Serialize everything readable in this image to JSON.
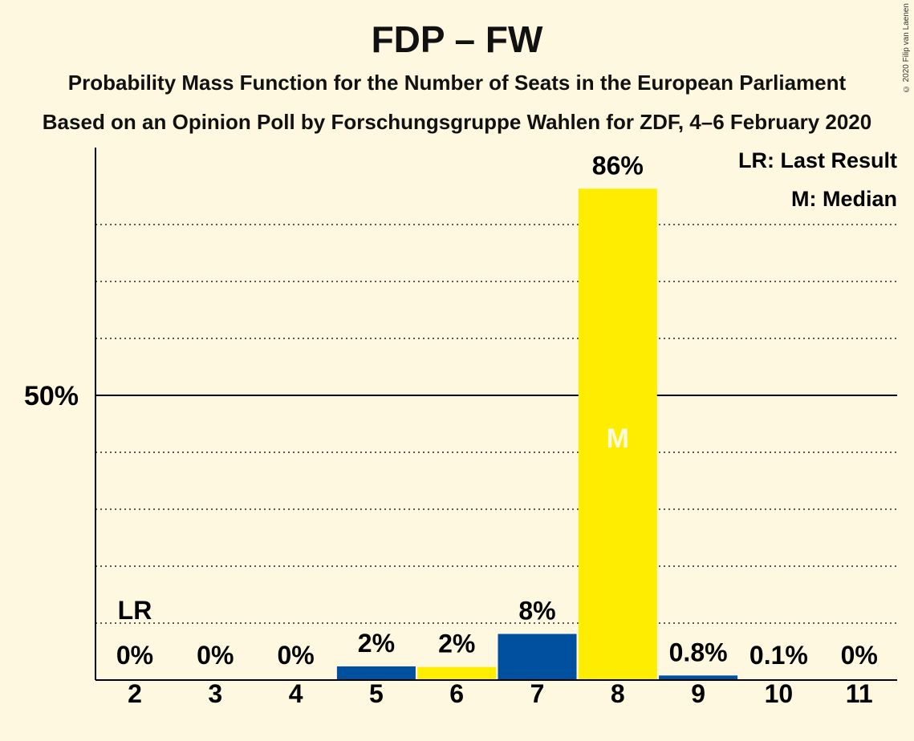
{
  "title": "FDP – FW",
  "subtitle": "Probability Mass Function for the Number of Seats in the European Parliament",
  "subtitle2": "Based on an Opinion Poll by Forschungsgruppe Wahlen for ZDF, 4–6 February 2020",
  "copyright": "© 2020 Filip van Laenen",
  "legend": {
    "last_result": "LR: Last Result",
    "median": "M: Median"
  },
  "colors": {
    "background": "#fff8e1",
    "blue": "#0050a0",
    "yellow": "#ffed00",
    "median_text": "#fff8e1"
  },
  "chart_data": {
    "type": "bar",
    "categories": [
      "2",
      "3",
      "4",
      "5",
      "6",
      "7",
      "8",
      "9",
      "10",
      "11"
    ],
    "values": [
      0,
      0,
      0,
      2.4,
      2.3,
      8.1,
      86.3,
      0.8,
      0.1,
      0
    ],
    "value_labels": [
      "0%",
      "0%",
      "0%",
      "2%",
      "2%",
      "8%",
      "86%",
      "0.8%",
      "0.1%",
      "0%"
    ],
    "bar_colors": [
      "blue",
      "yellow",
      "blue",
      "blue",
      "yellow",
      "blue",
      "yellow",
      "blue",
      "blue",
      "yellow"
    ],
    "ylim": [
      0,
      94
    ],
    "y_tick_label": "50%",
    "y_tick_value": 50,
    "dotted_gridlines": [
      10,
      20,
      30,
      40,
      60,
      70,
      80
    ],
    "last_result_category": "2",
    "last_result_label": "LR",
    "median_category": "8",
    "median_label": "M"
  }
}
